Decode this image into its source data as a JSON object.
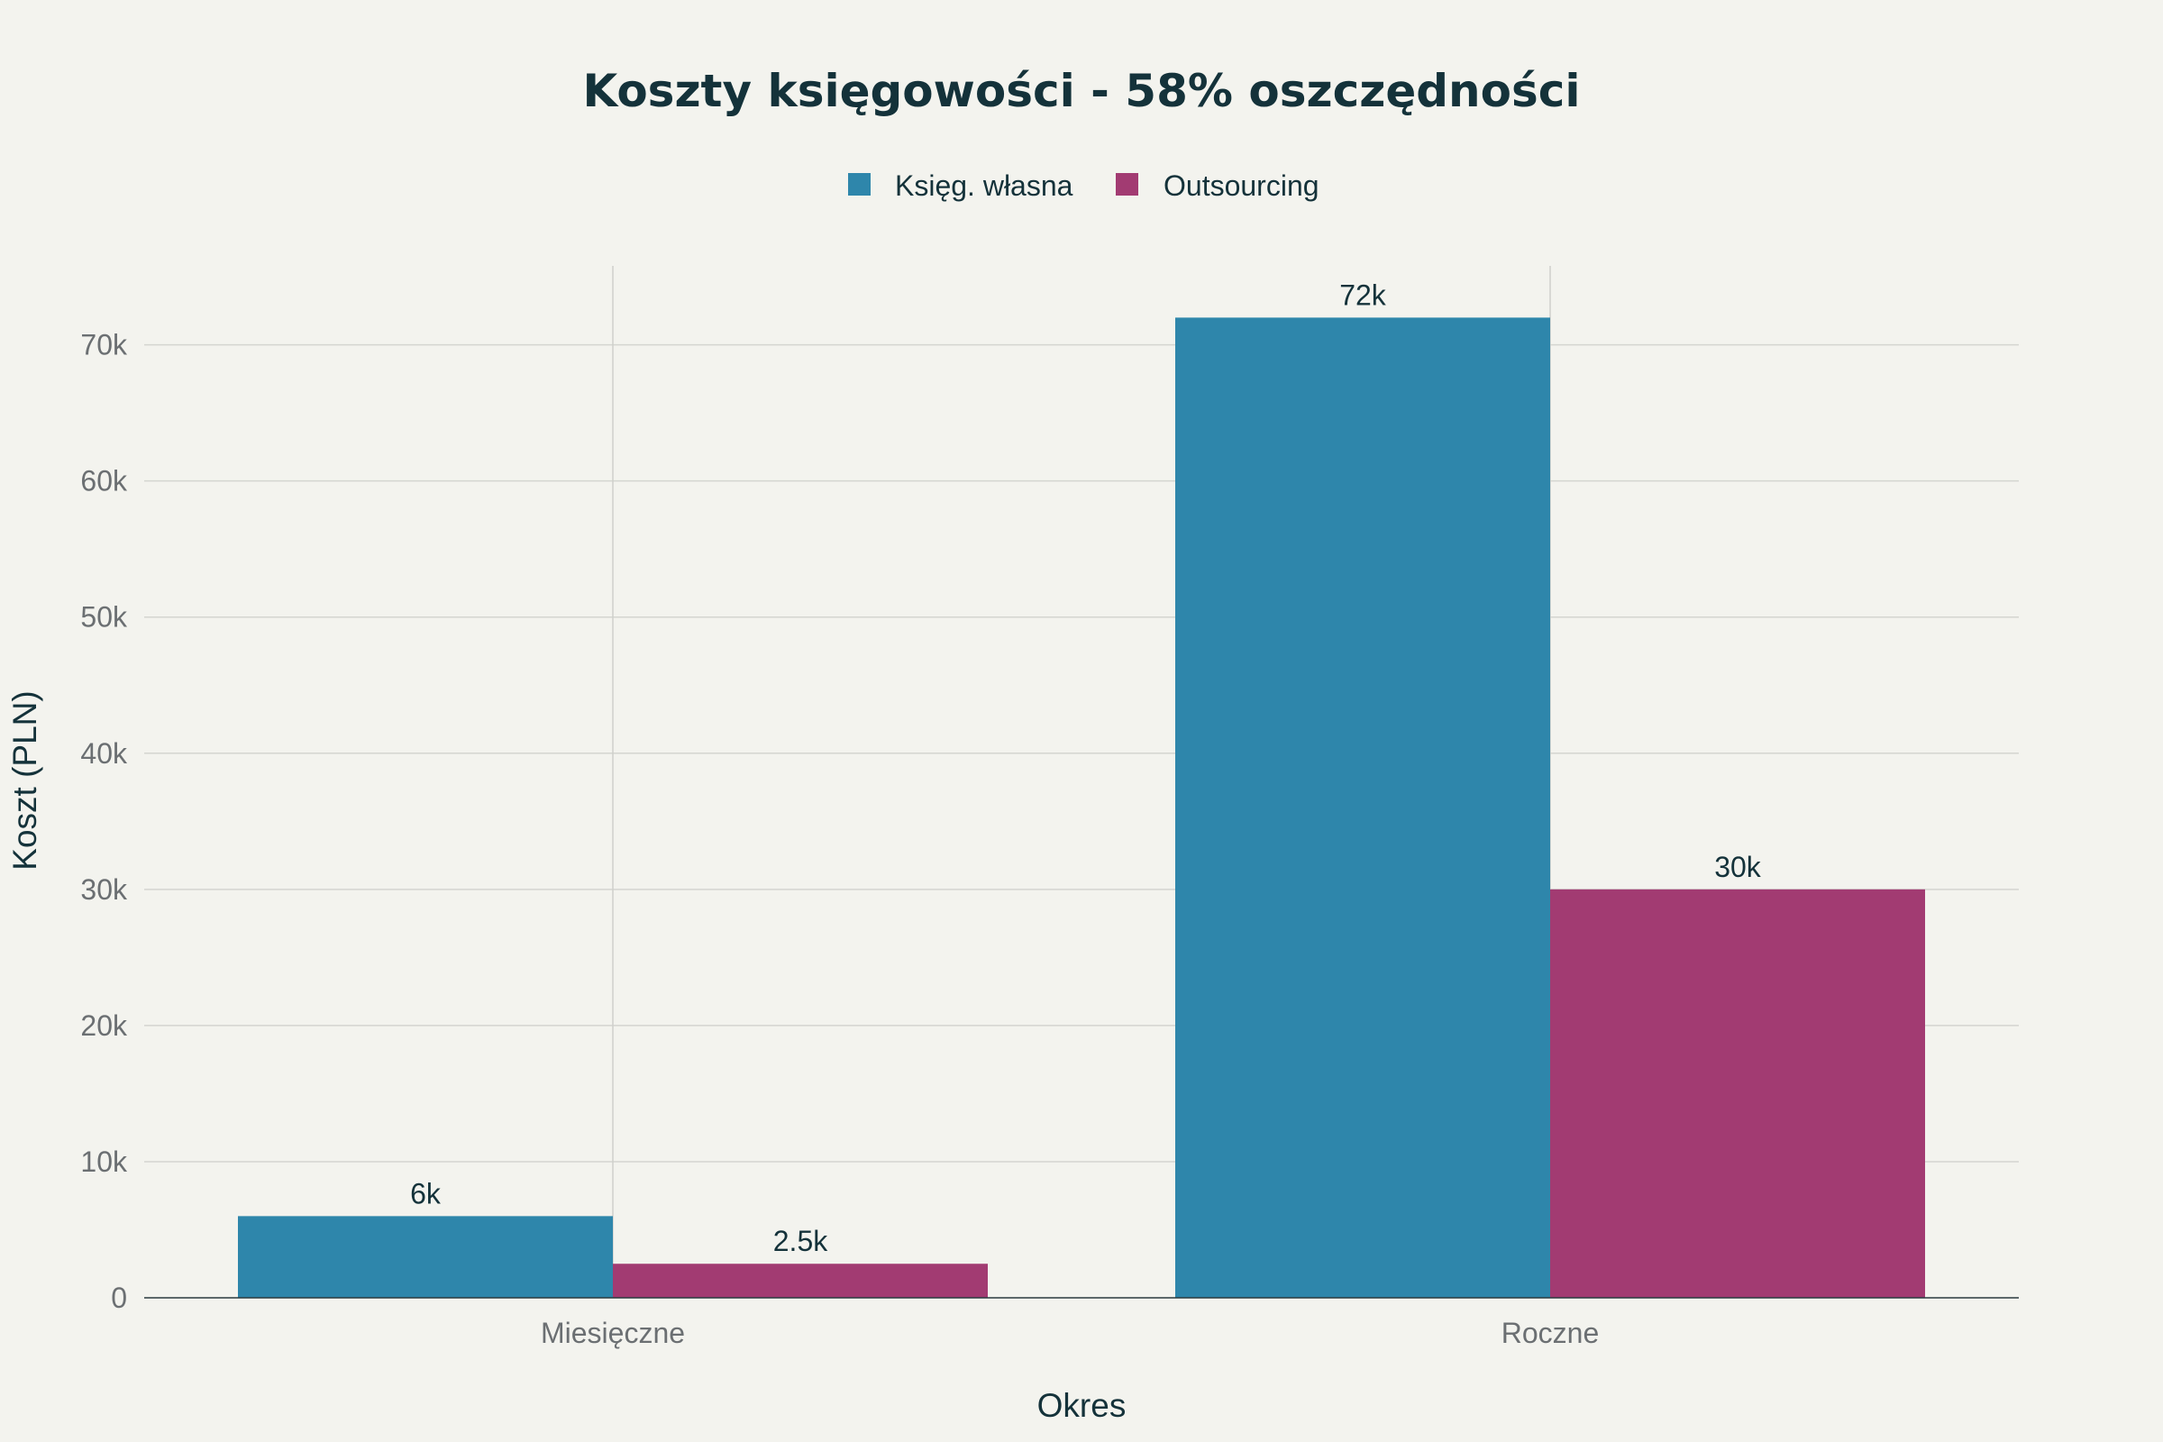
{
  "chart_data": {
    "type": "bar",
    "title": "Koszty księgowości - 58% oszczędności",
    "xlabel": "Okres",
    "ylabel": "Koszt (PLN)",
    "categories": [
      "Miesięczne",
      "Roczne"
    ],
    "series": [
      {
        "name": "Księg. własna",
        "color": "#2e86ab",
        "values": [
          6000,
          72000
        ],
        "labels": [
          "6k",
          "72k"
        ]
      },
      {
        "name": "Outsourcing",
        "color": "#a23b72",
        "values": [
          2500,
          30000
        ],
        "labels": [
          "2.5k",
          "30k"
        ]
      }
    ],
    "ylim": [
      0,
      75800
    ],
    "yticks": [
      0,
      10000,
      20000,
      30000,
      40000,
      50000,
      60000,
      70000
    ],
    "ytick_labels": [
      "0",
      "10k",
      "20k",
      "30k",
      "40k",
      "50k",
      "60k",
      "70k"
    ],
    "grid": true,
    "legend_position": "top-center"
  }
}
